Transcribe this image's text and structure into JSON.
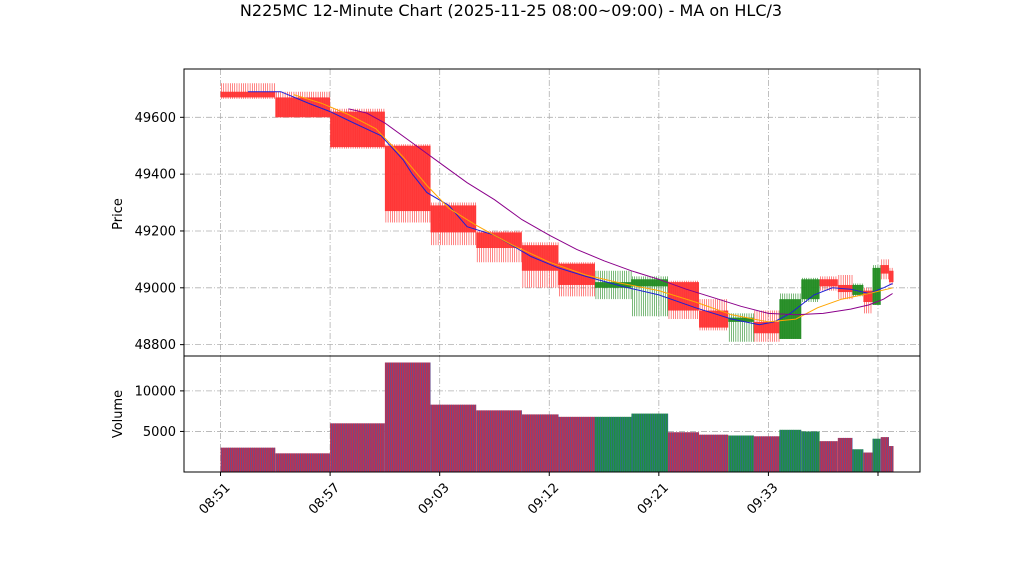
{
  "chart_data": {
    "type": "candlestick",
    "title": "N225MC 12-Minute Chart (2025-11-25 08:00~09:00) - MA on HLC/3",
    "price_panel": {
      "ylabel": "Price",
      "ylim": [
        48760,
        49770
      ],
      "yticks": [
        48800,
        49000,
        49200,
        49400,
        49600
      ],
      "grid": true
    },
    "volume_panel": {
      "ylabel": "Volume",
      "ylim": [
        0,
        14300
      ],
      "yticks": [
        5000,
        10000
      ],
      "grid": true
    },
    "x_tick_labels": [
      "08:51",
      "08:57",
      "09:03",
      "09:12",
      "09:21",
      "09:33"
    ],
    "x_tick_positions": [
      0,
      6,
      12,
      18,
      24,
      30
    ],
    "x_end_tick_position": 36,
    "x_range": [
      -2,
      38.3
    ],
    "candles": [
      {
        "start": 0,
        "end": 3,
        "open": 49690,
        "high": 49720,
        "low": 49665,
        "close": 49670,
        "volume": 3000
      },
      {
        "start": 3,
        "end": 6,
        "open": 49670,
        "high": 49690,
        "low": 49600,
        "close": 49600,
        "volume": 2300
      },
      {
        "start": 6,
        "end": 9,
        "open": 49620,
        "high": 49630,
        "low": 49490,
        "close": 49495,
        "volume": 6000
      },
      {
        "start": 9,
        "end": 11.5,
        "open": 49500,
        "high": 49505,
        "low": 49230,
        "close": 49270,
        "volume": 13500
      },
      {
        "start": 11.5,
        "end": 14,
        "open": 49290,
        "high": 49300,
        "low": 49150,
        "close": 49195,
        "volume": 8300
      },
      {
        "start": 14,
        "end": 16.5,
        "open": 49195,
        "high": 49200,
        "low": 49090,
        "close": 49140,
        "volume": 7600
      },
      {
        "start": 16.5,
        "end": 18.5,
        "open": 49150,
        "high": 49160,
        "low": 49000,
        "close": 49060,
        "volume": 7100
      },
      {
        "start": 18.5,
        "end": 20.5,
        "open": 49085,
        "high": 49090,
        "low": 48970,
        "close": 49010,
        "volume": 6800
      },
      {
        "start": 20.5,
        "end": 22.5,
        "open": 49000,
        "high": 49060,
        "low": 48960,
        "close": 49020,
        "volume": 6800
      },
      {
        "start": 22.5,
        "end": 24.5,
        "open": 49005,
        "high": 49040,
        "low": 48900,
        "close": 49030,
        "volume": 7200
      },
      {
        "start": 24.5,
        "end": 26.2,
        "open": 49020,
        "high": 49025,
        "low": 48890,
        "close": 48920,
        "volume": 4900
      },
      {
        "start": 26.2,
        "end": 27.8,
        "open": 48920,
        "high": 48960,
        "low": 48850,
        "close": 48860,
        "volume": 4600
      },
      {
        "start": 27.8,
        "end": 29.2,
        "open": 48880,
        "high": 48910,
        "low": 48810,
        "close": 48895,
        "volume": 4500
      },
      {
        "start": 29.2,
        "end": 30.6,
        "open": 48880,
        "high": 48920,
        "low": 48810,
        "close": 48840,
        "volume": 4400
      },
      {
        "start": 30.6,
        "end": 31.8,
        "open": 48820,
        "high": 48980,
        "low": 48820,
        "close": 48960,
        "volume": 5200
      },
      {
        "start": 31.8,
        "end": 32.8,
        "open": 48960,
        "high": 49035,
        "low": 48950,
        "close": 49030,
        "volume": 5000
      },
      {
        "start": 32.8,
        "end": 33.8,
        "open": 49030,
        "high": 49040,
        "low": 48990,
        "close": 49005,
        "volume": 3800
      },
      {
        "start": 33.8,
        "end": 34.6,
        "open": 49010,
        "high": 49045,
        "low": 48960,
        "close": 48985,
        "volume": 4200
      },
      {
        "start": 34.6,
        "end": 35.2,
        "open": 48975,
        "high": 49015,
        "low": 48970,
        "close": 49010,
        "volume": 2800
      },
      {
        "start": 35.2,
        "end": 35.7,
        "open": 48990,
        "high": 49000,
        "low": 48910,
        "close": 48950,
        "volume": 2400
      },
      {
        "start": 35.7,
        "end": 36.15,
        "open": 48940,
        "high": 49080,
        "low": 48940,
        "close": 49070,
        "volume": 4100
      },
      {
        "start": 36.15,
        "end": 36.6,
        "open": 49080,
        "high": 49100,
        "low": 49030,
        "close": 49050,
        "volume": 4300
      },
      {
        "start": 36.6,
        "end": 36.85,
        "open": 49060,
        "high": 49070,
        "low": 49010,
        "close": 49020,
        "volume": 3200
      }
    ],
    "ma_series": [
      {
        "color": "#1f1fd6",
        "points": [
          [
            1.5,
            49690
          ],
          [
            3.3,
            49690
          ],
          [
            4.8,
            49650
          ],
          [
            6.0,
            49620
          ],
          [
            7.3,
            49580
          ],
          [
            8.8,
            49535
          ],
          [
            10.0,
            49450
          ],
          [
            10.5,
            49400
          ],
          [
            11.3,
            49335
          ],
          [
            12.5,
            49290
          ],
          [
            13.5,
            49215
          ],
          [
            15.0,
            49185
          ],
          [
            17.0,
            49110
          ],
          [
            18.5,
            49070
          ],
          [
            20.0,
            49040
          ],
          [
            22.0,
            49005
          ],
          [
            24.0,
            48975
          ],
          [
            26.0,
            48930
          ],
          [
            28.0,
            48890
          ],
          [
            29.5,
            48870
          ],
          [
            30.3,
            48880
          ],
          [
            31.2,
            48910
          ],
          [
            32.5,
            48975
          ],
          [
            33.5,
            49000
          ],
          [
            34.5,
            48995
          ],
          [
            35.5,
            48980
          ],
          [
            36.3,
            49000
          ],
          [
            36.8,
            49015
          ]
        ]
      },
      {
        "color": "#ffa500",
        "points": [
          [
            4.0,
            49680
          ],
          [
            5.5,
            49650
          ],
          [
            7.0,
            49610
          ],
          [
            8.5,
            49560
          ],
          [
            10.0,
            49460
          ],
          [
            11.3,
            49360
          ],
          [
            12.5,
            49280
          ],
          [
            14.0,
            49220
          ],
          [
            16.0,
            49150
          ],
          [
            18.0,
            49090
          ],
          [
            20.0,
            49045
          ],
          [
            22.0,
            49015
          ],
          [
            24.0,
            48990
          ],
          [
            26.0,
            48950
          ],
          [
            28.0,
            48905
          ],
          [
            30.0,
            48880
          ],
          [
            31.5,
            48890
          ],
          [
            32.7,
            48930
          ],
          [
            34.0,
            48960
          ],
          [
            35.5,
            48980
          ],
          [
            36.5,
            48995
          ],
          [
            36.8,
            49000
          ]
        ]
      },
      {
        "color": "#8b008b",
        "points": [
          [
            7.0,
            49630
          ],
          [
            8.0,
            49615
          ],
          [
            9.0,
            49580
          ],
          [
            10.5,
            49510
          ],
          [
            12.0,
            49440
          ],
          [
            13.5,
            49370
          ],
          [
            15.0,
            49310
          ],
          [
            16.5,
            49240
          ],
          [
            18.0,
            49185
          ],
          [
            19.5,
            49135
          ],
          [
            21.0,
            49095
          ],
          [
            22.5,
            49060
          ],
          [
            24.0,
            49030
          ],
          [
            25.5,
            48995
          ],
          [
            27.0,
            48965
          ],
          [
            28.5,
            48935
          ],
          [
            30.0,
            48910
          ],
          [
            31.5,
            48905
          ],
          [
            33.0,
            48910
          ],
          [
            34.5,
            48925
          ],
          [
            35.5,
            48940
          ],
          [
            36.3,
            48960
          ],
          [
            36.8,
            48980
          ]
        ]
      }
    ],
    "up_color": "#228b22",
    "down_color": "#ff3333",
    "volume_up_color": "#1f8f3f",
    "volume_down_color": "#c0304e"
  }
}
